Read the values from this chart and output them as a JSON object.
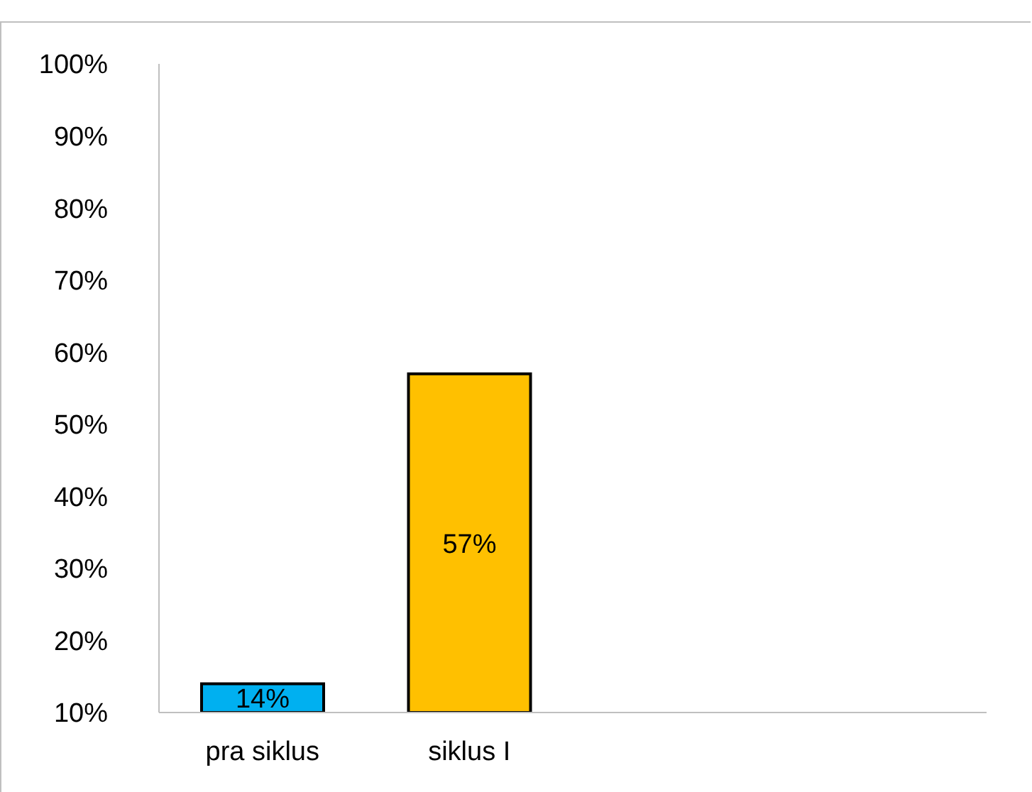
{
  "chart_data": {
    "type": "bar",
    "categories": [
      "pra siklus",
      "siklus I",
      null,
      null
    ],
    "values": [
      14,
      57,
      null,
      null
    ],
    "colors": [
      "#00b0f0",
      "#ffc000",
      null,
      null
    ],
    "value_labels": [
      "14%",
      "57%",
      null,
      null
    ],
    "ylim": [
      10,
      100
    ],
    "yticks": [
      {
        "value": 10,
        "label": "10%"
      },
      {
        "value": 20,
        "label": "20%"
      },
      {
        "value": 30,
        "label": "30%"
      },
      {
        "value": 40,
        "label": "40%"
      },
      {
        "value": 50,
        "label": "50%"
      },
      {
        "value": 60,
        "label": "60%"
      },
      {
        "value": 70,
        "label": "70%"
      },
      {
        "value": 80,
        "label": "80%"
      },
      {
        "value": 90,
        "label": "90%"
      },
      {
        "value": 100,
        "label": "100%"
      }
    ],
    "grid": false,
    "legend": false
  }
}
